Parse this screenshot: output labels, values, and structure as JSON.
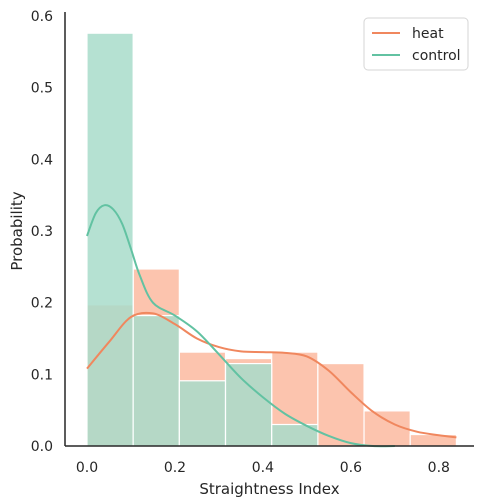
{
  "chart_data": {
    "type": "histogram",
    "xlabel": "Straightness Index",
    "ylabel": "Probability",
    "xlim": [
      -0.05,
      0.88
    ],
    "ylim": [
      0,
      0.6
    ],
    "xticks": [
      0.0,
      0.2,
      0.4,
      0.6,
      0.8
    ],
    "yticks": [
      0.0,
      0.1,
      0.2,
      0.3,
      0.4,
      0.5,
      0.6
    ],
    "xtick_labels": [
      "0.0",
      "0.2",
      "0.4",
      "0.6",
      "0.8"
    ],
    "ytick_labels": [
      "0.0",
      "0.1",
      "0.2",
      "0.3",
      "0.4",
      "0.5",
      "0.6"
    ],
    "bin_edges": [
      0.0,
      0.105,
      0.21,
      0.315,
      0.42,
      0.525,
      0.63,
      0.735,
      0.84
    ],
    "grid": false,
    "legend_position": "top-right",
    "series": [
      {
        "name": "heat",
        "fill_color": "#fcc4ae",
        "line_color": "#f0875e",
        "values": [
          0.197,
          0.247,
          0.131,
          0.122,
          0.131,
          0.115,
          0.049,
          0.016
        ],
        "kde_x": [
          0.0,
          0.05,
          0.1,
          0.15,
          0.2,
          0.25,
          0.3,
          0.35,
          0.4,
          0.45,
          0.5,
          0.55,
          0.6,
          0.65,
          0.7,
          0.75,
          0.8,
          0.84
        ],
        "kde_y": [
          0.108,
          0.145,
          0.18,
          0.185,
          0.17,
          0.15,
          0.138,
          0.132,
          0.131,
          0.13,
          0.125,
          0.105,
          0.075,
          0.048,
          0.03,
          0.02,
          0.015,
          0.012
        ]
      },
      {
        "name": "control",
        "fill_color": "#a8dcca",
        "line_color": "#62c2a2",
        "values": [
          0.576,
          0.182,
          0.091,
          0.115,
          0.03,
          0.0,
          0.0,
          0.0
        ],
        "kde_x": [
          0.0,
          0.02,
          0.04,
          0.06,
          0.08,
          0.1,
          0.12,
          0.15,
          0.2,
          0.25,
          0.3,
          0.35,
          0.4,
          0.45,
          0.5,
          0.55,
          0.6,
          0.65,
          0.7
        ],
        "kde_y": [
          0.293,
          0.325,
          0.336,
          0.33,
          0.31,
          0.275,
          0.238,
          0.2,
          0.182,
          0.16,
          0.128,
          0.095,
          0.068,
          0.045,
          0.028,
          0.014,
          0.004,
          0.0,
          0.0
        ]
      }
    ]
  }
}
